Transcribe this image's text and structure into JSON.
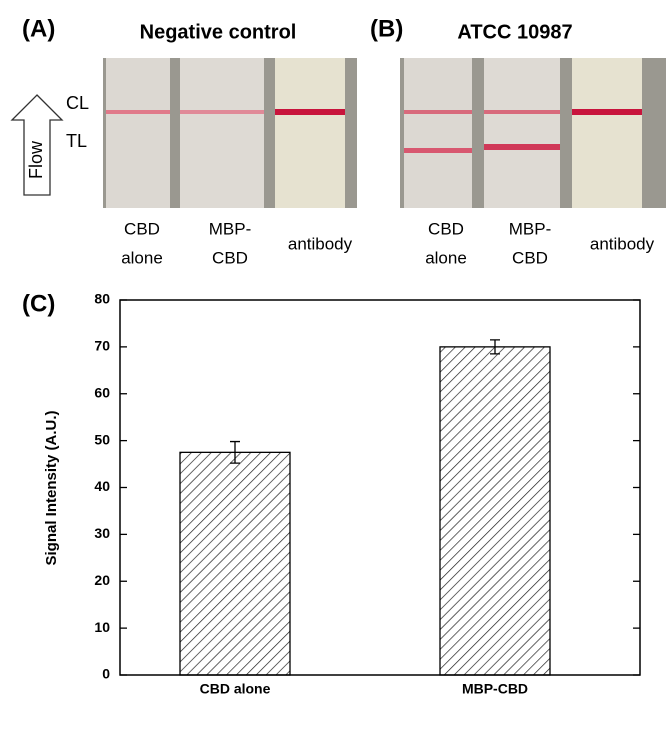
{
  "panels": [
    {
      "label": "(A)",
      "title": "Negative control",
      "strip_labels": [
        [
          "CBD",
          "alone"
        ],
        [
          "MBP-",
          "CBD"
        ],
        [
          "antibody"
        ]
      ]
    },
    {
      "label": "(B)",
      "title": "ATCC 10987",
      "strip_labels": [
        [
          "CBD",
          "alone"
        ],
        [
          "MBP-",
          "CBD"
        ],
        [
          "antibody"
        ]
      ]
    }
  ],
  "flow_label": "Flow",
  "control_line_label": "CL",
  "test_line_label": "TL",
  "chart_data": {
    "type": "bar",
    "panel_label": "(C)",
    "ylabel": "Signal Intensity (A.U.)",
    "categories": [
      "CBD alone",
      "MBP-CBD"
    ],
    "values": [
      47.5,
      70
    ],
    "errors": [
      2.3,
      1.5
    ],
    "color": "#ffffff",
    "hatch": true,
    "ylim": [
      0,
      80
    ],
    "yticks": [
      0,
      10,
      20,
      30,
      40,
      50,
      60,
      70,
      80
    ]
  }
}
